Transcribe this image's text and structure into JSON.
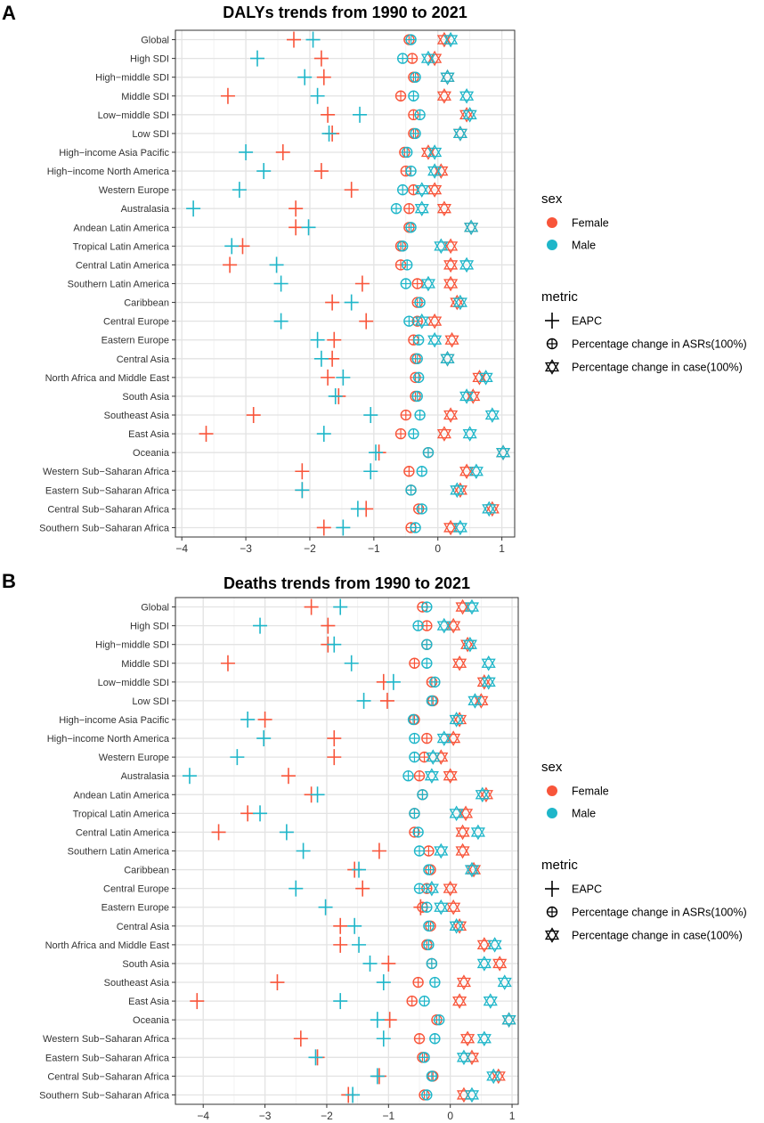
{
  "figure": {
    "legend": {
      "sex_title": "sex",
      "sex_items": [
        {
          "label": "Female",
          "color": "#F8553A"
        },
        {
          "label": "Male",
          "color": "#1FB6C9"
        }
      ],
      "metric_title": "metric",
      "metric_items": [
        {
          "label": "EAPC",
          "shape": "plus"
        },
        {
          "label": "Percentage change in ASRs(100%)",
          "shape": "circle-plus"
        },
        {
          "label": "Percentage change in case(100%)",
          "shape": "hexagram"
        }
      ]
    }
  },
  "chart_data": [
    {
      "type": "scatter",
      "panel": "A",
      "title": "DALYs trends from 1990 to 2021",
      "xlim": [
        -4.1,
        1.2
      ],
      "xticks": [
        -4,
        -3,
        -2,
        -1,
        0,
        1
      ],
      "grid": true,
      "categories": [
        "Global",
        "High SDI",
        "High−middle SDI",
        "Middle SDI",
        "Low−middle SDI",
        "Low SDI",
        "High−income Asia Pacific",
        "High−income North America",
        "Western Europe",
        "Australasia",
        "Andean Latin America",
        "Tropical Latin America",
        "Central Latin America",
        "Southern Latin America",
        "Caribbean",
        "Central Europe",
        "Eastern Europe",
        "Central Asia",
        "North Africa and Middle East",
        "South Asia",
        "Southeast Asia",
        "East Asia",
        "Oceania",
        "Western Sub−Saharan Africa",
        "Eastern Sub−Saharan Africa",
        "Central Sub−Saharan Africa",
        "Southern Sub−Saharan Africa"
      ],
      "series": [
        {
          "name": "Female",
          "metric": "EAPC",
          "values": [
            -2.25,
            -1.82,
            -1.78,
            -3.28,
            -1.72,
            -1.65,
            -2.42,
            -1.82,
            -1.35,
            -2.22,
            -2.22,
            -3.05,
            -3.25,
            -1.18,
            -1.65,
            -1.12,
            -1.62,
            -1.65,
            -1.72,
            -1.55,
            -2.88,
            -3.62,
            -0.92,
            -2.12,
            -2.12,
            -1.12,
            -1.78
          ]
        },
        {
          "name": "Male",
          "metric": "EAPC",
          "values": [
            -1.95,
            -2.82,
            -2.08,
            -1.88,
            -1.22,
            -1.7,
            -3.0,
            -2.72,
            -3.1,
            -3.82,
            -2.02,
            -3.22,
            -2.52,
            -2.45,
            -1.35,
            -2.45,
            -1.88,
            -1.82,
            -1.48,
            -1.6,
            -1.05,
            -1.78,
            -0.97,
            -1.05,
            -2.12,
            -1.25,
            -1.48
          ]
        },
        {
          "name": "Female",
          "metric": "Percentage change in ASRs(100%)",
          "values": [
            -0.45,
            -0.4,
            -0.38,
            -0.58,
            -0.38,
            -0.38,
            -0.52,
            -0.5,
            -0.38,
            -0.45,
            -0.45,
            -0.58,
            -0.58,
            -0.32,
            -0.32,
            -0.32,
            -0.38,
            -0.35,
            -0.35,
            -0.35,
            -0.5,
            -0.58,
            -0.15,
            -0.45,
            -0.42,
            -0.3,
            -0.42
          ]
        },
        {
          "name": "Male",
          "metric": "Percentage change in ASRs(100%)",
          "values": [
            -0.42,
            -0.55,
            -0.35,
            -0.38,
            -0.28,
            -0.35,
            -0.48,
            -0.42,
            -0.55,
            -0.65,
            -0.42,
            -0.55,
            -0.48,
            -0.5,
            -0.28,
            -0.45,
            -0.3,
            -0.32,
            -0.3,
            -0.32,
            -0.28,
            -0.38,
            -0.15,
            -0.25,
            -0.42,
            -0.25,
            -0.35
          ]
        },
        {
          "name": "Female",
          "metric": "Percentage change in case(100%)",
          "values": [
            0.1,
            -0.05,
            0.15,
            0.1,
            0.45,
            0.35,
            -0.15,
            0.05,
            -0.05,
            0.1,
            0.52,
            0.2,
            0.2,
            0.2,
            0.3,
            -0.05,
            0.22,
            0.15,
            0.65,
            0.55,
            0.2,
            0.1,
            1.02,
            0.45,
            0.35,
            0.85,
            0.2
          ]
        },
        {
          "name": "Male",
          "metric": "Percentage change in case(100%)",
          "values": [
            0.2,
            -0.15,
            0.15,
            0.45,
            0.5,
            0.35,
            -0.05,
            -0.05,
            -0.25,
            -0.25,
            0.52,
            0.05,
            0.45,
            -0.15,
            0.35,
            -0.25,
            -0.05,
            0.15,
            0.75,
            0.45,
            0.85,
            0.5,
            1.02,
            0.6,
            0.3,
            0.8,
            0.35
          ]
        }
      ]
    },
    {
      "type": "scatter",
      "panel": "B",
      "title": "Deaths trends from 1990 to 2021",
      "xlim": [
        -4.45,
        1.1
      ],
      "xticks": [
        -4,
        -3,
        -2,
        -1,
        0,
        1
      ],
      "grid": true,
      "categories": [
        "Global",
        "High SDI",
        "High−middle SDI",
        "Middle SDI",
        "Low−middle SDI",
        "Low SDI",
        "High−income Asia Pacific",
        "High−income North America",
        "Western Europe",
        "Australasia",
        "Andean Latin America",
        "Tropical Latin America",
        "Central Latin America",
        "Southern Latin America",
        "Caribbean",
        "Central Europe",
        "Eastern Europe",
        "Central Asia",
        "North Africa and Middle East",
        "South Asia",
        "Southeast Asia",
        "East Asia",
        "Oceania",
        "Western Sub−Saharan Africa",
        "Eastern Sub−Saharan Africa",
        "Central Sub−Saharan Africa",
        "Southern Sub−Saharan Africa"
      ],
      "series": [
        {
          "name": "Female",
          "metric": "EAPC",
          "values": [
            -2.25,
            -1.98,
            -1.98,
            -3.6,
            -1.08,
            -1.02,
            -3.0,
            -1.88,
            -1.88,
            -2.62,
            -2.25,
            -3.28,
            -3.75,
            -1.15,
            -1.55,
            -1.42,
            -0.48,
            -1.78,
            -1.78,
            -1.0,
            -2.8,
            -4.1,
            -0.98,
            -2.42,
            -2.15,
            -1.15,
            -1.65
          ]
        },
        {
          "name": "Male",
          "metric": "EAPC",
          "values": [
            -1.78,
            -3.08,
            -1.88,
            -1.6,
            -0.92,
            -1.4,
            -3.28,
            -3.02,
            -3.45,
            -4.22,
            -2.15,
            -3.08,
            -2.65,
            -2.38,
            -1.48,
            -2.5,
            -2.02,
            -1.55,
            -1.48,
            -1.3,
            -1.08,
            -1.78,
            -1.18,
            -1.08,
            -2.18,
            -1.18,
            -1.58
          ]
        },
        {
          "name": "Female",
          "metric": "Percentage change in ASRs(100%)",
          "values": [
            -0.45,
            -0.38,
            -0.38,
            -0.58,
            -0.3,
            -0.28,
            -0.58,
            -0.38,
            -0.42,
            -0.5,
            -0.45,
            -0.58,
            -0.58,
            -0.35,
            -0.32,
            -0.38,
            -0.45,
            -0.32,
            -0.38,
            -0.3,
            -0.52,
            -0.62,
            -0.22,
            -0.5,
            -0.45,
            -0.28,
            -0.42
          ]
        },
        {
          "name": "Male",
          "metric": "Percentage change in ASRs(100%)",
          "values": [
            -0.38,
            -0.52,
            -0.38,
            -0.38,
            -0.25,
            -0.3,
            -0.6,
            -0.58,
            -0.58,
            -0.68,
            -0.45,
            -0.58,
            -0.52,
            -0.5,
            -0.35,
            -0.5,
            -0.38,
            -0.35,
            -0.35,
            -0.3,
            -0.25,
            -0.42,
            -0.18,
            -0.25,
            -0.42,
            -0.3,
            -0.38
          ]
        },
        {
          "name": "Female",
          "metric": "Percentage change in case(100%)",
          "values": [
            0.2,
            0.05,
            0.28,
            0.15,
            0.55,
            0.5,
            0.15,
            0.05,
            -0.15,
            0.0,
            0.58,
            0.25,
            0.2,
            0.2,
            0.38,
            0.0,
            0.05,
            0.15,
            0.55,
            0.8,
            0.22,
            0.15,
            0.95,
            0.28,
            0.35,
            0.78,
            0.22
          ]
        },
        {
          "name": "Male",
          "metric": "Percentage change in case(100%)",
          "values": [
            0.35,
            -0.1,
            0.32,
            0.62,
            0.62,
            0.4,
            0.1,
            -0.1,
            -0.28,
            -0.3,
            0.52,
            0.1,
            0.45,
            -0.15,
            0.35,
            -0.3,
            -0.15,
            0.1,
            0.72,
            0.55,
            0.88,
            0.65,
            0.95,
            0.55,
            0.22,
            0.7,
            0.35
          ]
        }
      ]
    }
  ]
}
